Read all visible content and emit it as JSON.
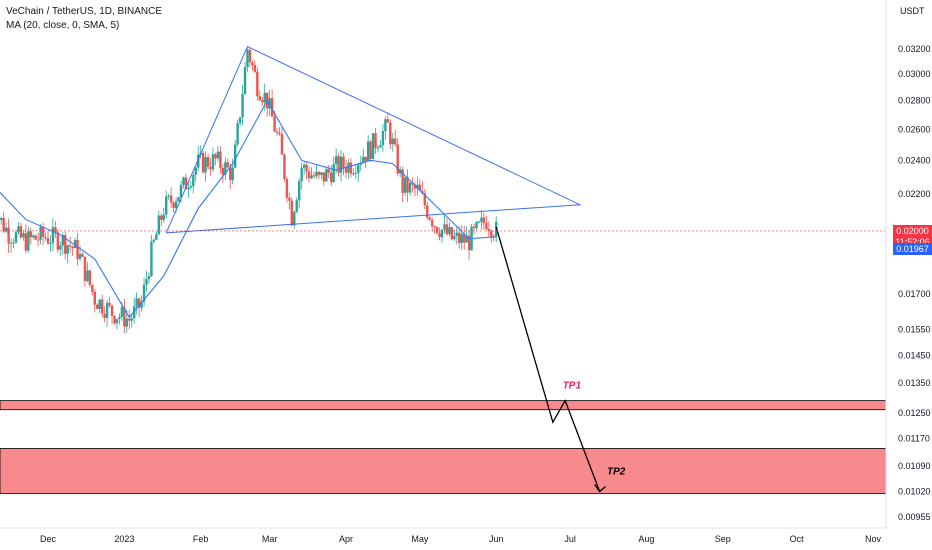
{
  "header": {
    "symbol": "VeChain / TetherUS, 1D, BINANCE",
    "indicator": "MA (20, close, 0, SMA, 5)"
  },
  "price_tags": {
    "last_price": "0.02000",
    "countdown": "11:52:06",
    "ma_value": "0.01967"
  },
  "colors": {
    "up": "#26a69a",
    "down": "#ef5350",
    "ma": "#3179f5",
    "triangle": "#3b6ff0",
    "zone": "#f77c80",
    "arrow": "#000000",
    "tp_label": "#e91e63",
    "tag_red": "#f23645",
    "tag_blue": "#2962ff"
  },
  "chart_data": {
    "type": "candlestick",
    "title": "VeChain / TetherUS, 1D, BINANCE",
    "y_unit": "USDT",
    "y_scale": "log",
    "ylim": [
      0.0093,
      0.0345
    ],
    "x_tick_labels": [
      "Dec",
      "2023",
      "Feb",
      "Mar",
      "Apr",
      "May",
      "Jun",
      "Jul",
      "Aug",
      "Sep",
      "Oct",
      "Nov"
    ],
    "x_tick_dates": [
      "2022-12-01",
      "2023-01-01",
      "2023-02-01",
      "2023-03-01",
      "2023-04-01",
      "2023-05-01",
      "2023-06-01",
      "2023-07-01",
      "2023-08-01",
      "2023-09-01",
      "2023-10-01",
      "2023-11-01"
    ],
    "y_tick_labels": [
      "0.03200",
      "0.03000",
      "0.02800",
      "0.02600",
      "0.02400",
      "0.02200",
      "0.01700",
      "0.01550",
      "0.01450",
      "0.01350",
      "0.01250",
      "0.01170",
      "0.01090",
      "0.01020",
      "0.00955"
    ],
    "series": [
      {
        "name": "VeChain / TetherUS",
        "kind": "candlestick-close",
        "points": [
          [
            "2022-11-08",
            0.0213
          ],
          [
            "2022-11-15",
            0.0199
          ],
          [
            "2022-11-22",
            0.0195
          ],
          [
            "2022-11-29",
            0.0197
          ],
          [
            "2022-12-06",
            0.0196
          ],
          [
            "2022-12-13",
            0.019
          ],
          [
            "2022-12-20",
            0.0168
          ],
          [
            "2022-12-27",
            0.0162
          ],
          [
            "2023-01-03",
            0.0159
          ],
          [
            "2023-01-08",
            0.0166
          ],
          [
            "2023-01-12",
            0.0189
          ],
          [
            "2023-01-17",
            0.0212
          ],
          [
            "2023-01-24",
            0.0222
          ],
          [
            "2023-01-31",
            0.0238
          ],
          [
            "2023-02-07",
            0.024
          ],
          [
            "2023-02-14",
            0.0232
          ],
          [
            "2023-02-20",
            0.032
          ],
          [
            "2023-02-24",
            0.0292
          ],
          [
            "2023-02-28",
            0.028
          ],
          [
            "2023-03-05",
            0.025
          ],
          [
            "2023-03-10",
            0.0208
          ],
          [
            "2023-03-14",
            0.0236
          ],
          [
            "2023-03-21",
            0.0228
          ],
          [
            "2023-03-28",
            0.0236
          ],
          [
            "2023-04-04",
            0.0238
          ],
          [
            "2023-04-11",
            0.0248
          ],
          [
            "2023-04-18",
            0.0262
          ],
          [
            "2023-04-20",
            0.025
          ],
          [
            "2023-04-24",
            0.0224
          ],
          [
            "2023-04-30",
            0.0222
          ],
          [
            "2023-05-07",
            0.0204
          ],
          [
            "2023-05-14",
            0.0196
          ],
          [
            "2023-05-21",
            0.0195
          ],
          [
            "2023-05-28",
            0.0206
          ],
          [
            "2023-06-01",
            0.02
          ]
        ]
      },
      {
        "name": "MA (20, close, 0, SMA, 5)",
        "kind": "line",
        "points": [
          [
            "2022-11-08",
            0.0226
          ],
          [
            "2022-11-22",
            0.0206
          ],
          [
            "2022-12-06",
            0.0198
          ],
          [
            "2022-12-20",
            0.0186
          ],
          [
            "2023-01-03",
            0.016
          ],
          [
            "2023-01-17",
            0.0178
          ],
          [
            "2023-01-31",
            0.0212
          ],
          [
            "2023-02-14",
            0.0238
          ],
          [
            "2023-02-28",
            0.028
          ],
          [
            "2023-03-14",
            0.024
          ],
          [
            "2023-03-28",
            0.0234
          ],
          [
            "2023-04-11",
            0.024
          ],
          [
            "2023-04-20",
            0.0238
          ],
          [
            "2023-05-07",
            0.0214
          ],
          [
            "2023-05-21",
            0.0196
          ],
          [
            "2023-06-01",
            0.0197
          ]
        ]
      }
    ],
    "drawings": [
      {
        "kind": "triangle",
        "points": [
          [
            "2023-01-18",
            0.0199
          ],
          [
            "2023-02-20",
            0.0322
          ],
          [
            "2023-07-05",
            0.0214
          ],
          [
            "2023-01-18",
            0.0199
          ]
        ]
      },
      {
        "kind": "projection-arrow",
        "points": [
          [
            "2023-06-01",
            0.0202
          ],
          [
            "2023-06-24",
            0.0122
          ],
          [
            "2023-06-29",
            0.0129
          ],
          [
            "2023-07-13",
            0.0102
          ]
        ]
      }
    ],
    "zones": [
      {
        "label": "TP1",
        "from": 0.0126,
        "to": 0.0129,
        "label_at": "2023-06-28"
      },
      {
        "label": "TP2",
        "from": 0.01015,
        "to": 0.0114,
        "label_at": "2023-07-16"
      }
    ]
  }
}
